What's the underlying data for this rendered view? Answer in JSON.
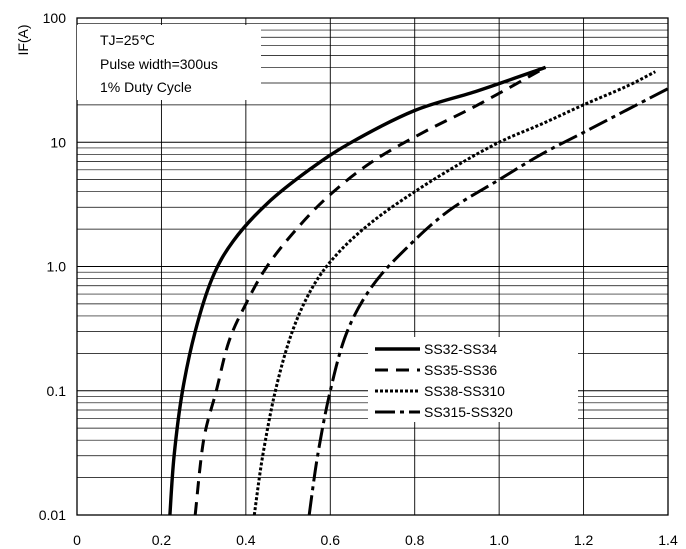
{
  "chart_data": {
    "type": "line",
    "title": "",
    "xlabel": "",
    "ylabel": "IF(A)",
    "xlim": [
      0,
      1.4
    ],
    "ylim": [
      0.01,
      100
    ],
    "y_scale": "log",
    "grid": true,
    "legend_position": "bottom-right",
    "x_ticks": [
      "0",
      "0.2",
      "0.4",
      "0.6",
      "0.8",
      "1.0",
      "1.2",
      "1.4"
    ],
    "y_ticks": [
      "0.01",
      "0.1",
      "1.0",
      "10",
      "100"
    ],
    "annotations": [
      "TJ=25℃",
      "Pulse width=300us",
      "1% Duty Cycle"
    ],
    "series": [
      {
        "name": "SS32-SS34",
        "style": "solid",
        "x": [
          0.22,
          0.23,
          0.25,
          0.28,
          0.32,
          0.37,
          0.45,
          0.55,
          0.65,
          0.8,
          0.95,
          1.11
        ],
        "y": [
          0.01,
          0.03,
          0.1,
          0.3,
          0.8,
          1.6,
          3.2,
          6.0,
          10,
          18,
          26,
          40
        ]
      },
      {
        "name": "SS35-SS36",
        "style": "dash",
        "x": [
          0.28,
          0.3,
          0.33,
          0.36,
          0.4,
          0.45,
          0.52,
          0.6,
          0.7,
          0.82,
          0.95,
          1.11
        ],
        "y": [
          0.01,
          0.04,
          0.1,
          0.25,
          0.5,
          1.0,
          2.0,
          3.8,
          7.0,
          12,
          20,
          40
        ]
      },
      {
        "name": "SS38-SS310",
        "style": "dot",
        "x": [
          0.42,
          0.44,
          0.47,
          0.51,
          0.56,
          0.62,
          0.7,
          0.8,
          0.9,
          1.0,
          1.1,
          1.2,
          1.3,
          1.37
        ],
        "y": [
          0.01,
          0.03,
          0.1,
          0.3,
          0.7,
          1.3,
          2.3,
          4.0,
          6.5,
          10,
          14,
          20,
          28,
          37
        ]
      },
      {
        "name": "SS315-SS320",
        "style": "longdash",
        "x": [
          0.55,
          0.57,
          0.6,
          0.64,
          0.7,
          0.78,
          0.88,
          1.0,
          1.1,
          1.2,
          1.3,
          1.4
        ],
        "y": [
          0.01,
          0.03,
          0.1,
          0.3,
          0.7,
          1.4,
          2.8,
          5.0,
          8.0,
          12,
          18,
          27
        ]
      }
    ]
  }
}
